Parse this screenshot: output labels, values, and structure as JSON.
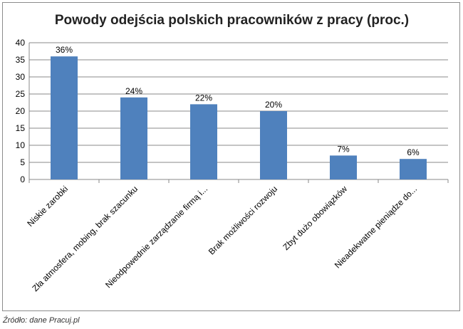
{
  "chart_data": {
    "type": "bar",
    "title": "Powody odejścia polskich pracowników z pracy (proc.)",
    "categories": [
      "Niskie zarobki",
      "Zła atmosfera, mobing, brak szacunku",
      "Nieodpowednie zarządzanie firmą i...",
      "Brak możliwości rozwoju",
      "Zbyt dużo obowiązków",
      "Nieadekwatne pieniądze do..."
    ],
    "values": [
      36,
      24,
      22,
      20,
      7,
      6
    ],
    "data_labels": [
      "36%",
      "24%",
      "22%",
      "20%",
      "7%",
      "6%"
    ],
    "ylim": [
      0,
      40
    ],
    "yticks": [
      0,
      5,
      10,
      15,
      20,
      25,
      30,
      35,
      40
    ],
    "grid": true,
    "bar_color": "#4f81bd"
  },
  "source": "Źródło: dane Pracuj.pl"
}
